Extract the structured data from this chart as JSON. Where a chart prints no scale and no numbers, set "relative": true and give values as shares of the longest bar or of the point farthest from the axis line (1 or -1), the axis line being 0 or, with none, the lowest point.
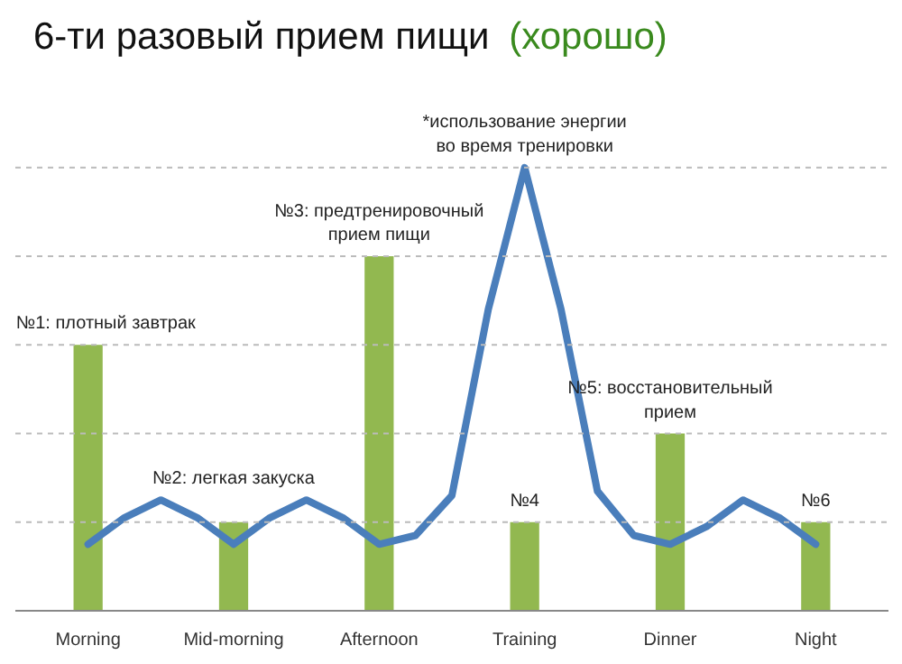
{
  "chart_data": {
    "type": "bar",
    "title": "6-ти разовый прием пищи",
    "subtitle": "(хорошо)",
    "categories": [
      "Morning",
      null,
      null,
      null,
      "Mid-morning",
      null,
      null,
      null,
      "Afternoon",
      null,
      null,
      null,
      "Training",
      null,
      null,
      null,
      "Dinner",
      null,
      null,
      null,
      "Night"
    ],
    "relative": true,
    "grid": "y",
    "series": [
      {
        "color": "#92b850",
        "values": [
          0.6,
          null,
          null,
          null,
          0.2,
          null,
          null,
          null,
          0.8,
          null,
          null,
          null,
          0.2,
          null,
          null,
          null,
          0.4,
          null,
          null,
          null,
          0.2
        ]
      },
      {
        "type": "line",
        "color": "#4a7ebb",
        "values": [
          0.15,
          0.21,
          0.25,
          0.21,
          0.15,
          0.21,
          0.25,
          0.21,
          0.15,
          0.17,
          0.26,
          0.68,
          1.0,
          0.68,
          0.27,
          0.17,
          0.15,
          0.19,
          0.25,
          0.21,
          0.15
        ]
      }
    ],
    "annotations": [
      {
        "text": "№1: плотный завтрак",
        "x": "Morning",
        "y": 0.6
      },
      {
        "text": "№2: легкая закуска",
        "x": "Mid-morning",
        "y": 0.2
      },
      {
        "text": "№3: предтренировочный\nприем пищи",
        "x": "Afternoon",
        "y": 0.8
      },
      {
        "text": "*использование энергии\nво время тренировки",
        "x": "Training",
        "y": 1.0
      },
      {
        "text": "№4",
        "x": "Training",
        "y": 0.2
      },
      {
        "text": "№5: восстановительный\nприем",
        "x": "Dinner",
        "y": 0.4
      },
      {
        "text": "№6",
        "x": "Night",
        "y": 0.2
      }
    ]
  }
}
